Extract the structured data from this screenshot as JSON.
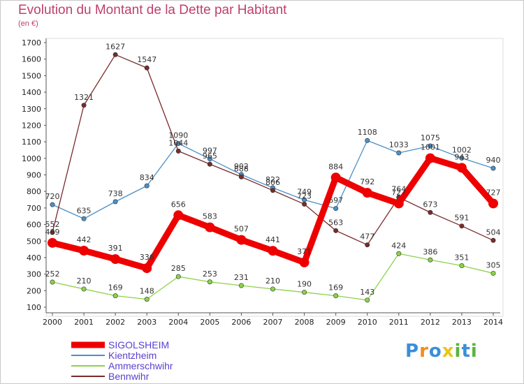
{
  "header": {
    "title": "Evolution du Montant de la Dette par Habitant",
    "subtitle": "(en €)"
  },
  "brand": {
    "logo_letters": [
      "P",
      "r",
      "o",
      "x",
      "i",
      "t",
      "i"
    ],
    "logo_colors": [
      "#3a8fd8",
      "#f28c1a",
      "#3a8fd8",
      "#e8c51c",
      "#5ab43c",
      "#3a8fd8",
      "#5ab43c"
    ]
  },
  "chart_data": {
    "type": "line",
    "title": "Evolution du Montant de la Dette par Habitant",
    "subtitle": "(en €)",
    "xlabel": "",
    "ylabel": "",
    "x": [
      "2000",
      "2001",
      "2002",
      "2003",
      "2004",
      "2005",
      "2006",
      "2007",
      "2008",
      "2009",
      "2010",
      "2011",
      "2012",
      "2013",
      "2014"
    ],
    "ylim": [
      100,
      1700
    ],
    "yticks": [
      100,
      200,
      300,
      400,
      500,
      600,
      700,
      800,
      900,
      1000,
      1100,
      1200,
      1300,
      1400,
      1500,
      1600,
      1700
    ],
    "grid": false,
    "legend_position": "bottom-left",
    "series": [
      {
        "name": "SIGOLSHEIM",
        "color": "#ee0000",
        "emphasis": true,
        "values": [
          489,
          442,
          391,
          336,
          656,
          583,
          507,
          441,
          371,
          884,
          792,
          727,
          1001,
          943,
          727
        ]
      },
      {
        "name": "Kientzheim",
        "color": "#4a90c8",
        "values": [
          720,
          635,
          738,
          834,
          1090,
          997,
          902,
          822,
          749,
          697,
          1108,
          1033,
          1075,
          1002,
          940
        ]
      },
      {
        "name": "Ammerschwihr",
        "color": "#8cd24a",
        "values": [
          252,
          210,
          169,
          148,
          285,
          253,
          231,
          210,
          190,
          169,
          143,
          424,
          386,
          351,
          305
        ]
      },
      {
        "name": "Bennwihr",
        "color": "#7a2a2a",
        "values": [
          552,
          1321,
          1627,
          1547,
          1044,
          965,
          888,
          806,
          723,
          563,
          477,
          764,
          673,
          591,
          504
        ]
      }
    ]
  }
}
